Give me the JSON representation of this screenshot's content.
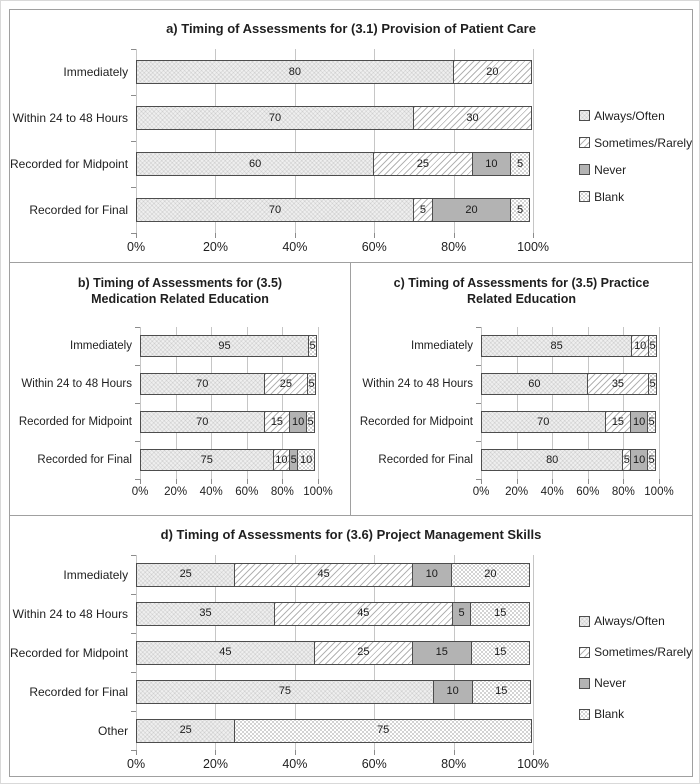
{
  "figure_title": "Timing of Assessments stacked bar charts",
  "colors": {
    "always_often_fill": "#efefef",
    "sometimes_rarely_fill": "#ffffff",
    "never_fill": "#b3b3b3",
    "blank_fill": "#ffffff",
    "segment_border": "#4d4d4d",
    "gridline": "#c6c6c6",
    "panel_border": "#a0a0a0",
    "text": "#1f1f1f"
  },
  "chart_data": [
    {
      "type": "bar",
      "stacked": true,
      "orientation": "horizontal",
      "panel": "full",
      "title_lines": [
        "a) Timing of Assessments for (3.1) Provision of Patient Care"
      ],
      "categories": [
        "Immediately",
        "Within 24 to 48 Hours",
        "Recorded for Midpoint",
        "Recorded for Final"
      ],
      "series": [
        {
          "name": "Always/Often",
          "pattern": "fine-crosshatch",
          "values": [
            80,
            70,
            60,
            70
          ]
        },
        {
          "name": "Sometimes/Rarely",
          "pattern": "diagonal-hatch",
          "values": [
            20,
            30,
            25,
            5
          ]
        },
        {
          "name": "Never",
          "pattern": "solid-gray",
          "values": [
            0,
            0,
            10,
            20
          ]
        },
        {
          "name": "Blank",
          "pattern": "dots",
          "values": [
            0,
            0,
            5,
            5
          ]
        }
      ],
      "xlim": [
        0,
        100
      ],
      "x_ticks": [
        "0%",
        "20%",
        "40%",
        "60%",
        "80%",
        "100%"
      ],
      "grid": true,
      "legend_position": "right"
    },
    {
      "type": "bar",
      "stacked": true,
      "orientation": "horizontal",
      "panel": "half",
      "title_lines": [
        "b) Timing of Assessments for (3.5)",
        "Medication Related Education"
      ],
      "categories": [
        "Immediately",
        "Within 24 to 48 Hours",
        "Recorded for Midpoint",
        "Recorded for Final"
      ],
      "series": [
        {
          "name": "Always/Often",
          "pattern": "fine-crosshatch",
          "values": [
            95,
            70,
            70,
            75
          ]
        },
        {
          "name": "Sometimes/Rarely",
          "pattern": "diagonal-hatch",
          "values": [
            0,
            25,
            15,
            10
          ]
        },
        {
          "name": "Never",
          "pattern": "solid-gray",
          "values": [
            0,
            0,
            10,
            5
          ]
        },
        {
          "name": "Blank",
          "pattern": "dots",
          "values": [
            5,
            5,
            5,
            10
          ]
        }
      ],
      "xlim": [
        0,
        100
      ],
      "x_ticks": [
        "0%",
        "20%",
        "40%",
        "60%",
        "80%",
        "100%"
      ],
      "grid": true,
      "legend_position": "none"
    },
    {
      "type": "bar",
      "stacked": true,
      "orientation": "horizontal",
      "panel": "half",
      "title_lines": [
        "c) Timing of Assessments for (3.5) Practice",
        "Related Education"
      ],
      "categories": [
        "Immediately",
        "Within 24 to 48 Hours",
        "Recorded for Midpoint",
        "Recorded for Final"
      ],
      "series": [
        {
          "name": "Always/Often",
          "pattern": "fine-crosshatch",
          "values": [
            85,
            60,
            70,
            80
          ]
        },
        {
          "name": "Sometimes/Rarely",
          "pattern": "diagonal-hatch",
          "values": [
            10,
            35,
            15,
            5
          ]
        },
        {
          "name": "Never",
          "pattern": "solid-gray",
          "values": [
            0,
            0,
            10,
            10
          ]
        },
        {
          "name": "Blank",
          "pattern": "dots",
          "values": [
            5,
            5,
            5,
            5
          ]
        }
      ],
      "xlim": [
        0,
        100
      ],
      "x_ticks": [
        "0%",
        "20%",
        "40%",
        "60%",
        "80%",
        "100%"
      ],
      "grid": true,
      "legend_position": "none"
    },
    {
      "type": "bar",
      "stacked": true,
      "orientation": "horizontal",
      "panel": "full",
      "title_lines": [
        "d) Timing of Assessments for (3.6) Project Management Skills"
      ],
      "categories": [
        "Immediately",
        "Within 24 to 48 Hours",
        "Recorded for Midpoint",
        "Recorded for Final",
        "Other"
      ],
      "series": [
        {
          "name": "Always/Often",
          "pattern": "fine-crosshatch",
          "values": [
            25,
            35,
            45,
            75,
            25
          ]
        },
        {
          "name": "Sometimes/Rarely",
          "pattern": "diagonal-hatch",
          "values": [
            45,
            45,
            25,
            0,
            0
          ]
        },
        {
          "name": "Never",
          "pattern": "solid-gray",
          "values": [
            10,
            5,
            15,
            10,
            0
          ]
        },
        {
          "name": "Blank",
          "pattern": "dots",
          "values": [
            20,
            15,
            15,
            15,
            75
          ]
        }
      ],
      "xlim": [
        0,
        100
      ],
      "x_ticks": [
        "0%",
        "20%",
        "40%",
        "60%",
        "80%",
        "100%"
      ],
      "grid": true,
      "legend_position": "right"
    }
  ]
}
